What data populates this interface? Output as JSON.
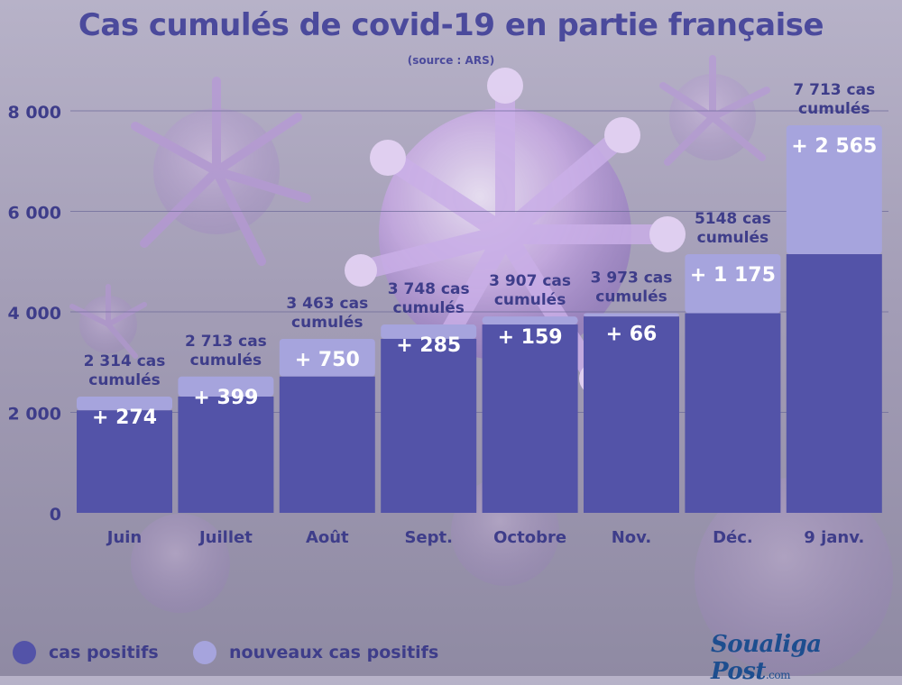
{
  "title": "Cas cumulés de covid-19 en partie française",
  "source": "(source : ARS)",
  "legend": {
    "positive": "cas positifs",
    "new_positive": "nouveaux cas positifs"
  },
  "logo": {
    "name": "Soualiga Post",
    "tld": ".com"
  },
  "colors": {
    "base": "#5353a8",
    "increment": "#a6a4dd",
    "text_dark": "#3e3d8a",
    "grid": "#6b6898"
  },
  "chart_data": {
    "type": "bar",
    "stacked": true,
    "categories": [
      "Juin",
      "Juillet",
      "Août",
      "Sept.",
      "Octobre",
      "Nov.",
      "Déc.",
      "9 janv."
    ],
    "series": [
      {
        "name": "cas positifs",
        "values": [
          2040,
          2314,
          2713,
          3463,
          3748,
          3907,
          3973,
          5148
        ]
      },
      {
        "name": "nouveaux cas positifs",
        "values": [
          274,
          399,
          750,
          285,
          159,
          66,
          1175,
          2565
        ]
      }
    ],
    "increment_labels": [
      "+ 274",
      "+ 399",
      "+ 750",
      "+ 285",
      "+ 159",
      "+ 66",
      "+ 1 175",
      "+ 2 565"
    ],
    "total_labels": [
      [
        "2 314 cas",
        "cumulés"
      ],
      [
        "2 713 cas",
        "cumulés"
      ],
      [
        "3 463 cas",
        "cumulés"
      ],
      [
        "3 748 cas",
        "cumulés"
      ],
      [
        "3 907 cas",
        "cumulés"
      ],
      [
        "3 973 cas",
        "cumulés"
      ],
      [
        "5148 cas",
        "cumulés"
      ],
      [
        "7 713 cas",
        "cumulés"
      ]
    ],
    "y_ticks": [
      0,
      2000,
      4000,
      6000,
      8000
    ],
    "y_tick_labels": [
      "0",
      "2 000",
      "4 000",
      "6 000",
      "8 000"
    ],
    "ylim": [
      0,
      8000
    ],
    "grid": true,
    "legend_position": "bottom-left"
  }
}
